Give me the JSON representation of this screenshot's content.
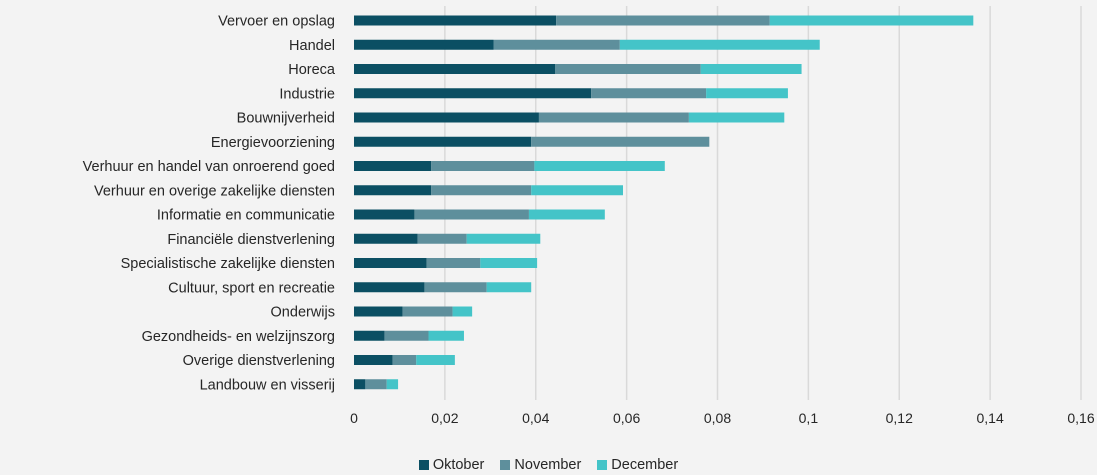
{
  "colors": {
    "background": "#f3f3f3",
    "gridline": "#d9d9d9",
    "text": "#262626"
  },
  "chart_data": {
    "type": "bar",
    "orientation": "horizontal",
    "stacked": true,
    "categories": [
      "Vervoer en opslag",
      "Handel",
      "Horeca",
      "Industrie",
      "Bouwnijverheid",
      "Energievoorziening",
      "Verhuur en handel van onroerend goed",
      "Verhuur en overige zakelijke diensten",
      "Informatie en communicatie",
      "Financiële dienstverlening",
      "Specialistische zakelijke diensten",
      "Cultuur, sport en recreatie",
      "Onderwijs",
      "Gezondheids- en welzijnszorg",
      "Overige dienstverlening",
      "Landbouw en visserij"
    ],
    "series": [
      {
        "name": "Oktober",
        "color": "#0b4f63",
        "values": [
          0.0445,
          0.0307,
          0.0443,
          0.0522,
          0.0407,
          0.039,
          0.017,
          0.017,
          0.0133,
          0.014,
          0.016,
          0.0155,
          0.0107,
          0.0067,
          0.0085,
          0.0025
        ]
      },
      {
        "name": "November",
        "color": "#5e8f9c",
        "values": [
          0.047,
          0.0278,
          0.032,
          0.0253,
          0.033,
          0.0392,
          0.0227,
          0.022,
          0.0252,
          0.0108,
          0.0118,
          0.0137,
          0.011,
          0.0097,
          0.0052,
          0.0047
        ]
      },
      {
        "name": "December",
        "color": "#44c4c8",
        "values": [
          0.0448,
          0.044,
          0.0222,
          0.018,
          0.021,
          0.0,
          0.0287,
          0.0202,
          0.0167,
          0.0162,
          0.0125,
          0.0098,
          0.0043,
          0.0078,
          0.0085,
          0.0025
        ]
      }
    ],
    "xlim": [
      0,
      0.16
    ],
    "xticks": [
      0,
      0.02,
      0.04,
      0.06,
      0.08,
      0.1,
      0.12,
      0.14,
      0.16
    ],
    "xtick_labels": [
      "0",
      "0,02",
      "0,04",
      "0,06",
      "0,08",
      "0,1",
      "0,12",
      "0,14",
      "0,16"
    ],
    "grid": "vertical",
    "legend_position": "bottom"
  }
}
